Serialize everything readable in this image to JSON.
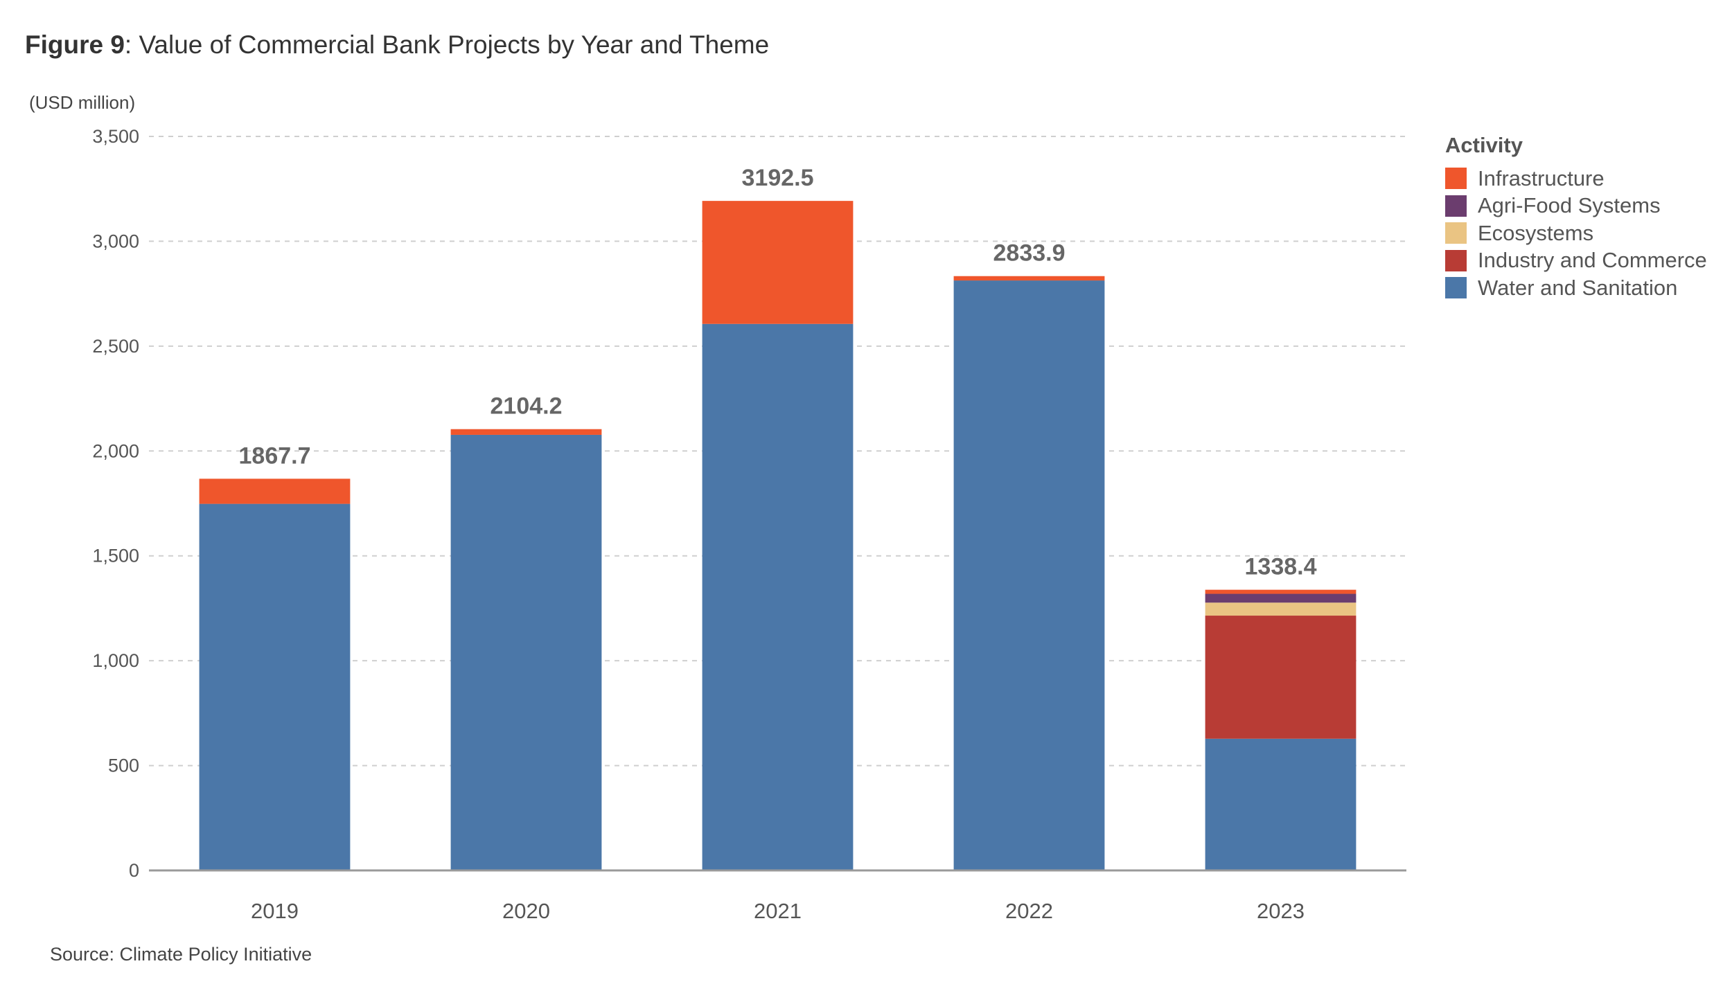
{
  "figure": {
    "number_label": "Figure 9",
    "title_text": ": Value of Commercial Bank Projects by Year and Theme"
  },
  "source": "Source: Climate Policy Initiative",
  "legend": {
    "title": "Activity",
    "position": "right"
  },
  "chart_data": {
    "type": "bar",
    "stacked": true,
    "title": "Value of Commercial Bank Projects by Year and Theme",
    "ylabel": "(USD million)",
    "xlabel": "",
    "ylim": [
      0,
      3500
    ],
    "yticks": [
      0,
      500,
      1000,
      1500,
      2000,
      2500,
      3000,
      3500
    ],
    "ytick_labels": [
      "0",
      "500",
      "1,000",
      "1,500",
      "2,000",
      "2,500",
      "3,000",
      "3,500"
    ],
    "grid": true,
    "categories": [
      "2019",
      "2020",
      "2021",
      "2022",
      "2023"
    ],
    "totals": [
      1867.7,
      2104.2,
      3192.5,
      2833.9,
      1338.4
    ],
    "total_labels": [
      "1867.7",
      "2104.2",
      "3192.5",
      "2833.9",
      "1338.4"
    ],
    "series": [
      {
        "name": "Water and Sanitation",
        "color": "#4b77a8",
        "values": [
          1748,
          2077,
          2606,
          2813,
          628
        ]
      },
      {
        "name": "Industry and Commerce",
        "color": "#b83c35",
        "values": [
          0,
          0,
          0,
          0,
          587
        ]
      },
      {
        "name": "Ecosystems",
        "color": "#eac483",
        "values": [
          0,
          0,
          0,
          0,
          62
        ]
      },
      {
        "name": "Agri-Food Systems",
        "color": "#6b3d6e",
        "values": [
          0,
          0,
          0,
          0,
          42
        ]
      },
      {
        "name": "Infrastructure",
        "color": "#ef562c",
        "values": [
          119.7,
          27.2,
          586.5,
          20.9,
          19.4
        ]
      }
    ],
    "legend_order": [
      "Infrastructure",
      "Agri-Food Systems",
      "Ecosystems",
      "Industry and Commerce",
      "Water and Sanitation"
    ]
  }
}
